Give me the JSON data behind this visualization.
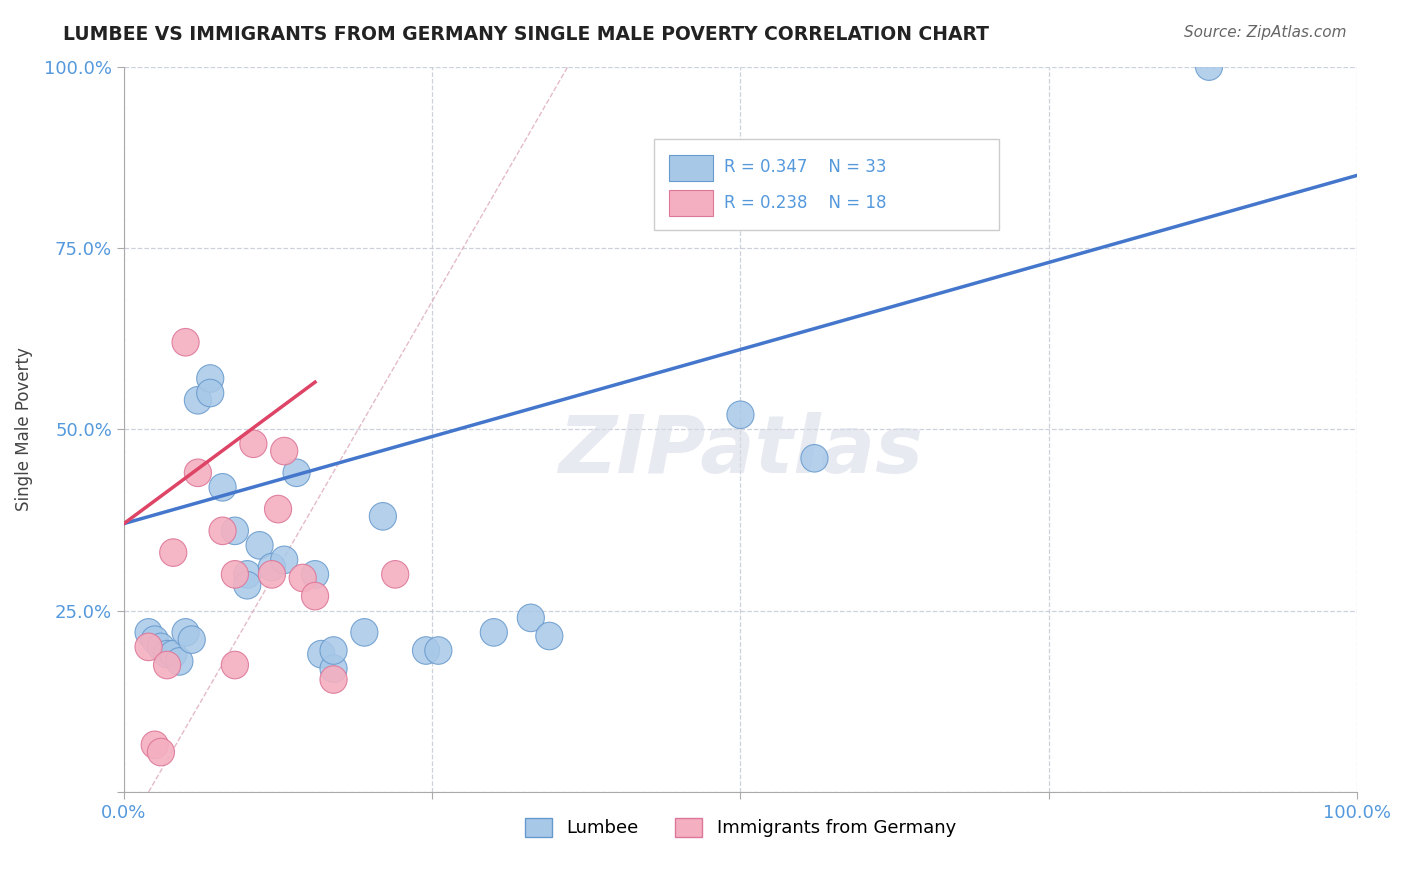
{
  "title": "LUMBEE VS IMMIGRANTS FROM GERMANY SINGLE MALE POVERTY CORRELATION CHART",
  "source": "Source: ZipAtlas.com",
  "ylabel": "Single Male Poverty",
  "xlim": [
    0,
    1.0
  ],
  "ylim": [
    0,
    1.0
  ],
  "lumbee_R": "0.347",
  "lumbee_N": "33",
  "germany_R": "0.238",
  "germany_N": "18",
  "lumbee_color": "#a8c8e8",
  "germany_color": "#f4b0c0",
  "lumbee_edge_color": "#6699cc",
  "germany_edge_color": "#dd7799",
  "lumbee_line_color": "#4477cc",
  "germany_line_color": "#dd4466",
  "diagonal_color": "#ddaabb",
  "watermark_color": "#d8dce8",
  "tick_color": "#5599dd",
  "lumbee_x": [
    0.02,
    0.025,
    0.03,
    0.035,
    0.04,
    0.045,
    0.05,
    0.055,
    0.06,
    0.07,
    0.07,
    0.08,
    0.09,
    0.1,
    0.1,
    0.11,
    0.12,
    0.13,
    0.14,
    0.155,
    0.16,
    0.17,
    0.17,
    0.195,
    0.21,
    0.245,
    0.255,
    0.3,
    0.33,
    0.345,
    0.5,
    0.56,
    0.88
  ],
  "lumbee_y": [
    0.22,
    0.21,
    0.2,
    0.19,
    0.19,
    0.18,
    0.22,
    0.21,
    0.54,
    0.57,
    0.55,
    0.42,
    0.36,
    0.3,
    0.285,
    0.34,
    0.31,
    0.32,
    0.44,
    0.3,
    0.19,
    0.17,
    0.195,
    0.22,
    0.38,
    0.195,
    0.195,
    0.22,
    0.24,
    0.215,
    0.52,
    0.46,
    1.0
  ],
  "germany_x": [
    0.02,
    0.025,
    0.03,
    0.035,
    0.04,
    0.05,
    0.06,
    0.08,
    0.09,
    0.09,
    0.105,
    0.12,
    0.125,
    0.13,
    0.145,
    0.155,
    0.17,
    0.22
  ],
  "germany_y": [
    0.2,
    0.065,
    0.055,
    0.175,
    0.33,
    0.62,
    0.44,
    0.36,
    0.3,
    0.175,
    0.48,
    0.3,
    0.39,
    0.47,
    0.295,
    0.27,
    0.155,
    0.3
  ],
  "lumbee_line_x0": 0.0,
  "lumbee_line_y0": 0.37,
  "lumbee_line_x1": 1.0,
  "lumbee_line_y1": 0.85,
  "germany_line_x0": 0.0,
  "germany_line_y0": 0.37,
  "germany_line_x1": 0.155,
  "germany_line_y1": 0.565
}
